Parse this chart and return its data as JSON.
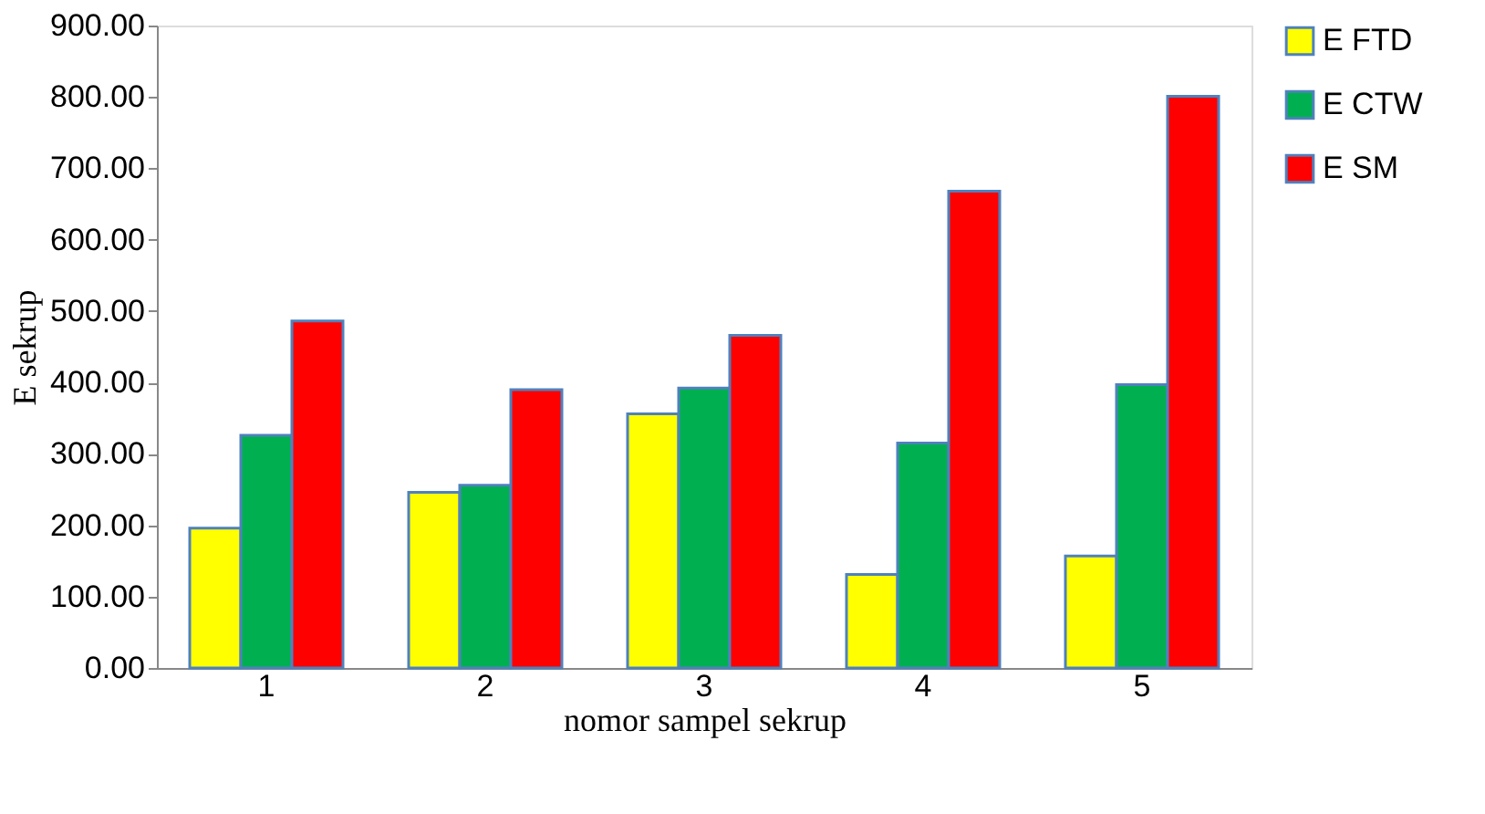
{
  "chart_data": {
    "type": "bar",
    "xlabel": "nomor sampel sekrup",
    "ylabel": "E sekrup",
    "categories": [
      "1",
      "2",
      "3",
      "4",
      "5"
    ],
    "series": [
      {
        "name": "E FTD",
        "color": "#ffff00",
        "values": [
          196,
          246,
          356,
          131,
          157
        ]
      },
      {
        "name": "E CTW",
        "color": "#00b050",
        "values": [
          326,
          256,
          392,
          315,
          397
        ]
      },
      {
        "name": "E SM",
        "color": "#ff0000",
        "values": [
          486,
          390,
          466,
          668,
          801
        ]
      }
    ],
    "ylim": [
      0,
      900
    ],
    "yticks": [
      {
        "value": 0,
        "label": "0.00"
      },
      {
        "value": 100,
        "label": "100.00"
      },
      {
        "value": 200,
        "label": "200.00"
      },
      {
        "value": 300,
        "label": "300.00"
      },
      {
        "value": 400,
        "label": "400.00"
      },
      {
        "value": 500,
        "label": "500.00"
      },
      {
        "value": 600,
        "label": "600.00"
      },
      {
        "value": 700,
        "label": "700.00"
      },
      {
        "value": 800,
        "label": "800.00"
      },
      {
        "value": 900,
        "label": "900.00"
      }
    ],
    "grid": false,
    "legend": "right"
  }
}
